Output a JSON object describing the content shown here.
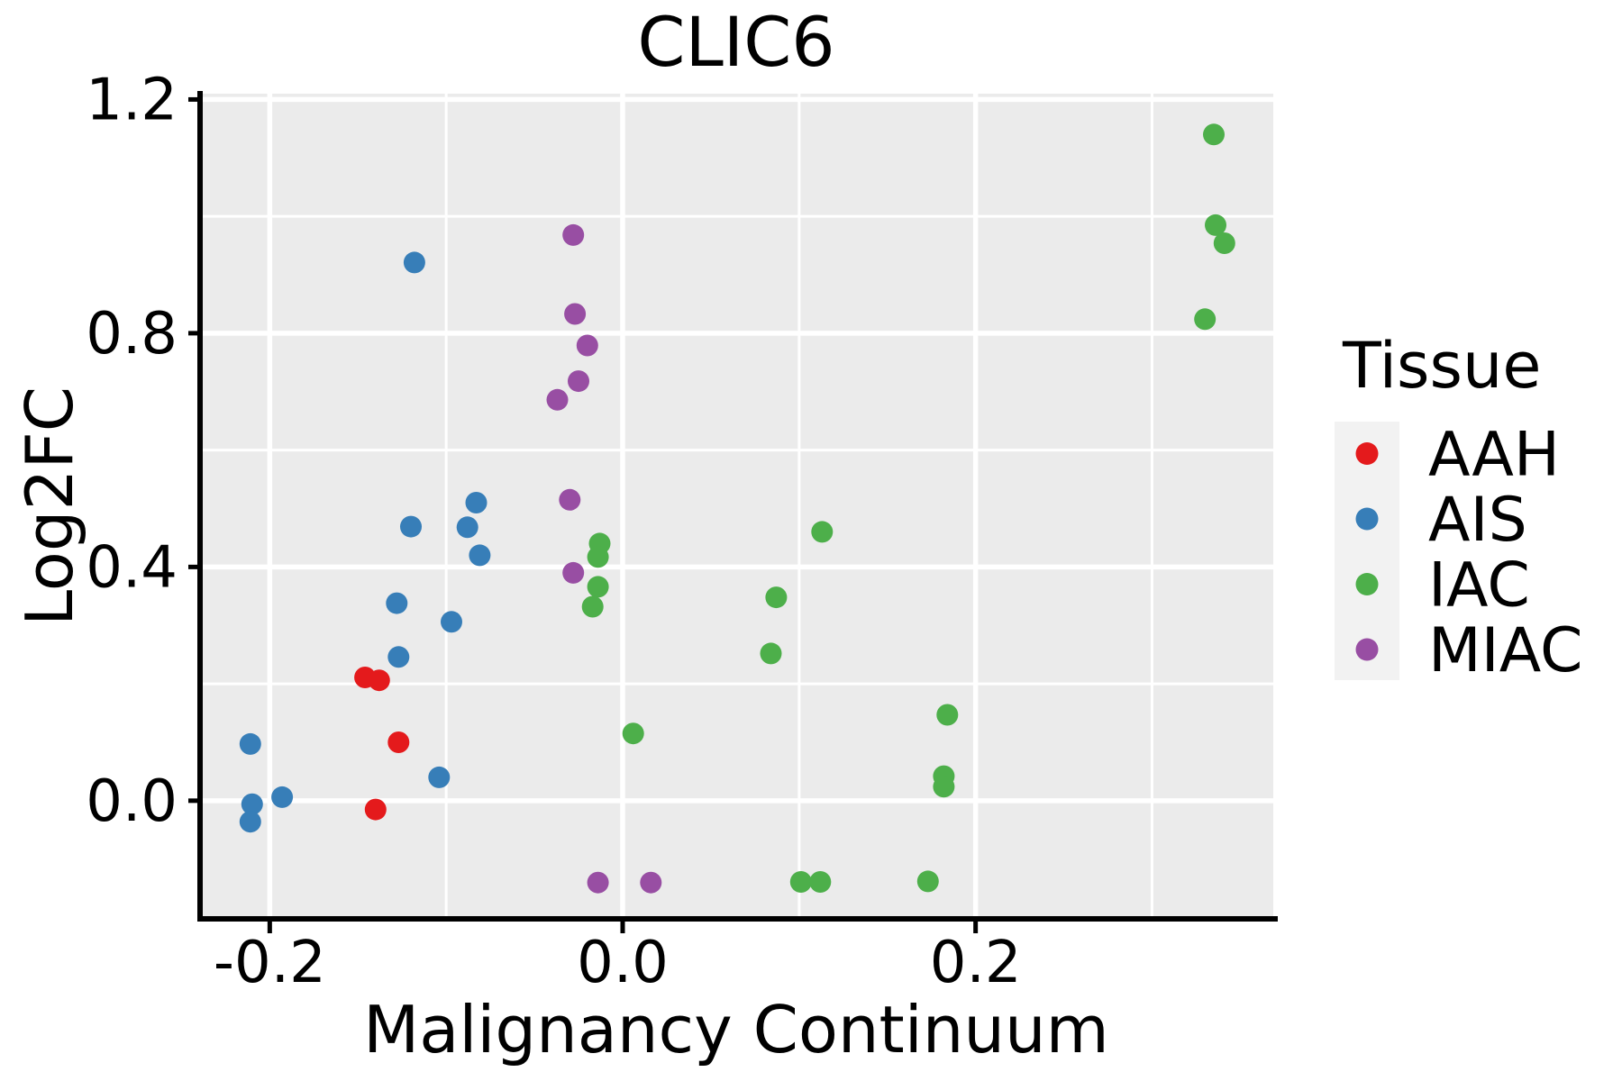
{
  "chart_data": {
    "type": "scatter",
    "title": "CLIC6",
    "xlabel": "Malignancy Continuum",
    "ylabel": "Log2FC",
    "xlim": [
      -0.2395,
      0.3687
    ],
    "ylim": [
      -0.2022,
      1.2099
    ],
    "grid": true,
    "legend_position": "right",
    "x_ticks": {
      "values": [
        -0.2,
        0.0,
        0.2
      ],
      "labels": [
        "-0.2",
        "0.0",
        "0.2"
      ]
    },
    "y_ticks": {
      "values": [
        0.0,
        0.4,
        0.8,
        1.2
      ],
      "labels": [
        "0.0",
        "0.4",
        "0.8",
        "1.2"
      ]
    },
    "x_minor_gridlines": [
      -0.1,
      0.1,
      0.3
    ],
    "y_minor_gridlines": [
      0.2,
      0.6,
      1.0
    ],
    "series": [
      {
        "name": "AAH",
        "color": "#E41A1C",
        "points": [
          [
            -0.146,
            0.211
          ],
          [
            -0.138,
            0.206
          ],
          [
            -0.127,
            0.1
          ],
          [
            -0.14,
            -0.015
          ]
        ]
      },
      {
        "name": "AIS",
        "color": "#377EB8",
        "points": [
          [
            -0.118,
            0.921
          ],
          [
            -0.083,
            0.51
          ],
          [
            -0.12,
            0.469
          ],
          [
            -0.088,
            0.468
          ],
          [
            -0.081,
            0.42
          ],
          [
            -0.128,
            0.338
          ],
          [
            -0.097,
            0.306
          ],
          [
            -0.127,
            0.246
          ],
          [
            -0.211,
            0.097
          ],
          [
            -0.104,
            0.04
          ],
          [
            -0.193,
            0.006
          ],
          [
            -0.21,
            -0.006
          ],
          [
            -0.211,
            -0.036
          ]
        ]
      },
      {
        "name": "IAC",
        "color": "#4DAF4A",
        "points": [
          [
            0.335,
            1.14
          ],
          [
            0.336,
            0.985
          ],
          [
            0.341,
            0.954
          ],
          [
            0.33,
            0.824
          ],
          [
            0.113,
            0.46
          ],
          [
            -0.013,
            0.44
          ],
          [
            -0.014,
            0.417
          ],
          [
            -0.014,
            0.366
          ],
          [
            -0.017,
            0.332
          ],
          [
            0.087,
            0.348
          ],
          [
            0.084,
            0.252
          ],
          [
            0.184,
            0.147
          ],
          [
            0.006,
            0.115
          ],
          [
            0.182,
            0.042
          ],
          [
            0.182,
            0.024
          ],
          [
            0.101,
            -0.139
          ],
          [
            0.112,
            -0.139
          ],
          [
            0.173,
            -0.138
          ]
        ]
      },
      {
        "name": "MIAC",
        "color": "#984EA3",
        "points": [
          [
            -0.028,
            0.968
          ],
          [
            -0.027,
            0.833
          ],
          [
            -0.02,
            0.779
          ],
          [
            -0.025,
            0.718
          ],
          [
            -0.037,
            0.686
          ],
          [
            -0.03,
            0.515
          ],
          [
            -0.028,
            0.39
          ],
          [
            -0.014,
            -0.14
          ],
          [
            0.016,
            -0.14
          ]
        ]
      }
    ]
  },
  "legend": {
    "title": "Tissue",
    "entries": [
      {
        "label": "AAH",
        "color": "#E41A1C"
      },
      {
        "label": "AIS",
        "color": "#377EB8"
      },
      {
        "label": "IAC",
        "color": "#4DAF4A"
      },
      {
        "label": "MIAC",
        "color": "#984EA3"
      }
    ]
  },
  "colors": {
    "panel_background": "#EBEBEB",
    "gridline": "#FFFFFF",
    "legend_key_background": "#F2F2F2",
    "axis": "#000000",
    "text": "#000000"
  }
}
